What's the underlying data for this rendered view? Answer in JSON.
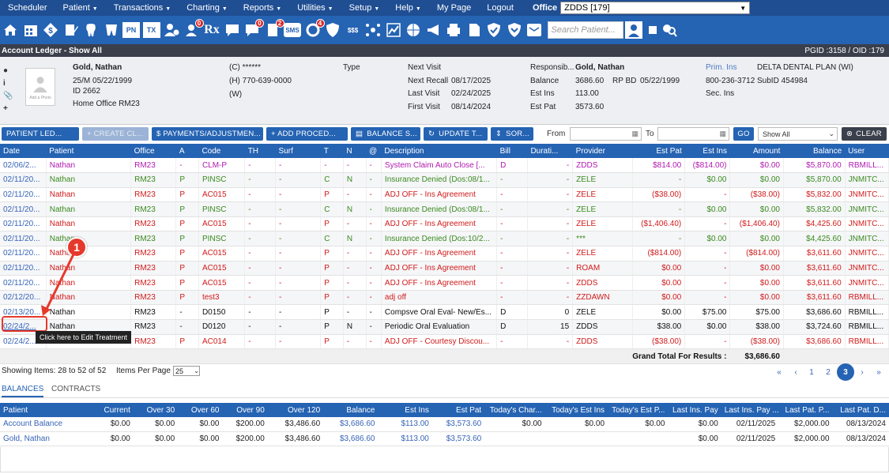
{
  "menu": {
    "items": [
      {
        "label": "Scheduler",
        "caret": false
      },
      {
        "label": "Patient",
        "caret": true
      },
      {
        "label": "Transactions",
        "caret": true
      },
      {
        "label": "Charting",
        "caret": true
      },
      {
        "label": "Reports",
        "caret": true
      },
      {
        "label": "Utilities",
        "caret": true
      },
      {
        "label": "Setup",
        "caret": true
      },
      {
        "label": "Help",
        "caret": true
      },
      {
        "label": "My Page",
        "caret": false
      },
      {
        "label": "Logout",
        "caret": false
      }
    ],
    "office_label": "Office",
    "office_value": "ZDDS [179]"
  },
  "toolbar_icons": {
    "search_placeholder": "Search Patient...",
    "badges": {
      "b1": "0",
      "b2": "2",
      "b3": "0",
      "b4": "0",
      "b5": "4"
    },
    "labels": {
      "pn": "PN",
      "tx": "TX",
      "rx": "Rx",
      "sms": "SMS",
      "ss": "$$$"
    }
  },
  "title": {
    "left": "Account Ledger - Show All",
    "right": "PGID :3158  /  OID :179"
  },
  "patient": {
    "name": "Gold, Nathan",
    "age_sex_dob": "25/M  05/22/1999",
    "id": "ID 2662",
    "home_office": "Home Office  RM23",
    "cell": "(C) ******",
    "home_phone": "(H) 770-639-0000",
    "work": "(W)",
    "type_label": "Type",
    "photo_text": "Add a Photo",
    "next_visit_label": "Next Visit",
    "next_recall_label": "Next Recall",
    "next_recall": "08/17/2025",
    "last_visit_label": "Last Visit",
    "last_visit": "02/24/2025",
    "first_visit_label": "First Visit",
    "first_visit": "08/14/2024",
    "resp_label": "Responsib...",
    "resp": "Gold, Nathan",
    "balance_label": "Balance",
    "balance": "3686.60",
    "rpbd_label": "RP BD",
    "rpbd": "05/22/1999",
    "estins_label": "Est Ins",
    "estins": "113.00",
    "estpat_label": "Est Pat",
    "estpat": "3573.60",
    "prim_label": "Prim. Ins",
    "prim": "DELTA DENTAL PLAN (WI)",
    "prim_phone": "800-236-3712",
    "subid": "SubID 454984",
    "sec_label": "Sec. Ins"
  },
  "actions": {
    "patient_ledger": "PATIENT LED...",
    "create_claim": "+ CREATE CL...",
    "payments": "$  PAYMENTS/ADJUSTMEN...",
    "add_procedure": "+  ADD PROCED...",
    "balance": "BALANCE S...",
    "update": "UPDATE T...",
    "sort": "SOR...",
    "from_label": "From",
    "to_label": "To",
    "go": "GO",
    "show_all": "Show All",
    "clear": "CLEAR"
  },
  "ledger": {
    "columns": [
      "Date",
      "Patient",
      "Office",
      "A",
      "Code",
      "TH",
      "Surf",
      "T",
      "N",
      "@",
      "Description",
      "Bill",
      "Durati...",
      "Provider",
      "Est Pat",
      "Est Ins",
      "Amount",
      "Balance",
      "User"
    ],
    "rows": [
      {
        "style": "purple",
        "cells": [
          "02/06/2...",
          "Nathan",
          "RM23",
          "-",
          "CLM-P",
          "-",
          "-",
          "-",
          "-",
          "-",
          "System Claim Auto Close [...",
          "D",
          "-",
          "ZDDS",
          "$814.00",
          "($814.00)",
          "$0.00",
          "$5,870.00",
          "RBMILL..."
        ]
      },
      {
        "style": "green",
        "cells": [
          "02/11/20...",
          "Nathan",
          "RM23",
          "P",
          "PINSC",
          "-",
          "-",
          "C",
          "N",
          "-",
          "Insurance Denied (Dos:08/1...",
          "-",
          "-",
          "ZELE",
          "-",
          "$0.00",
          "$0.00",
          "$5,870.00",
          "JNMITC..."
        ]
      },
      {
        "style": "red",
        "cells": [
          "02/11/20...",
          "Nathan",
          "RM23",
          "P",
          "AC015",
          "-",
          "-",
          "P",
          "-",
          "-",
          "ADJ OFF - Ins Agreement",
          "-",
          "-",
          "ZELE",
          "($38.00)",
          "-",
          "($38.00)",
          "$5,832.00",
          "JNMITC..."
        ]
      },
      {
        "style": "green",
        "cells": [
          "02/11/20...",
          "Nathan",
          "RM23",
          "P",
          "PINSC",
          "-",
          "-",
          "C",
          "N",
          "-",
          "Insurance Denied (Dos:08/1...",
          "-",
          "-",
          "ZELE",
          "-",
          "$0.00",
          "$0.00",
          "$5,832.00",
          "JNMITC..."
        ]
      },
      {
        "style": "red",
        "cells": [
          "02/11/20...",
          "Nathan",
          "RM23",
          "P",
          "AC015",
          "-",
          "-",
          "P",
          "-",
          "-",
          "ADJ OFF - Ins Agreement",
          "-",
          "-",
          "ZELE",
          "($1,406.40)",
          "-",
          "($1,406.40)",
          "$4,425.60",
          "JNMITC..."
        ]
      },
      {
        "style": "green",
        "cells": [
          "02/11/20...",
          "Nathan",
          "RM23",
          "P",
          "PINSC",
          "-",
          "-",
          "C",
          "N",
          "-",
          "Insurance Denied (Dos:10/2...",
          "-",
          "-",
          "***",
          "-",
          "$0.00",
          "$0.00",
          "$4,425.60",
          "JNMITC..."
        ]
      },
      {
        "style": "red",
        "cells": [
          "02/11/20...",
          "Nathan",
          "RM23",
          "P",
          "AC015",
          "-",
          "-",
          "P",
          "-",
          "-",
          "ADJ OFF - Ins Agreement",
          "-",
          "-",
          "ZELE",
          "($814.00)",
          "-",
          "($814.00)",
          "$3,611.60",
          "JNMITC..."
        ]
      },
      {
        "style": "red",
        "cells": [
          "02/11/20...",
          "Nathan",
          "RM23",
          "P",
          "AC015",
          "-",
          "-",
          "P",
          "-",
          "-",
          "ADJ OFF - Ins Agreement",
          "-",
          "-",
          "ROAM",
          "$0.00",
          "-",
          "$0.00",
          "$3,611.60",
          "JNMITC..."
        ]
      },
      {
        "style": "red",
        "cells": [
          "02/11/20...",
          "Nathan",
          "RM23",
          "P",
          "AC015",
          "-",
          "-",
          "P",
          "-",
          "-",
          "ADJ OFF - Ins Agreement",
          "-",
          "-",
          "ZDDS",
          "$0.00",
          "-",
          "$0.00",
          "$3,611.60",
          "JNMITC..."
        ]
      },
      {
        "style": "red",
        "cells": [
          "02/12/20...",
          "Nathan",
          "RM23",
          "P",
          "test3",
          "-",
          "-",
          "P",
          "-",
          "-",
          "adj off",
          "-",
          "-",
          "ZZDAWN",
          "$0.00",
          "-",
          "$0.00",
          "$3,611.60",
          "RBMILL..."
        ]
      },
      {
        "style": "black",
        "cells": [
          "02/13/20...",
          "Nathan",
          "RM23",
          "-",
          "D0150",
          "-",
          "-",
          "P",
          "-",
          "-",
          "Compsve Oral Eval- New/Es...",
          "D",
          "0",
          "ZELE",
          "$0.00",
          "$75.00",
          "$75.00",
          "$3,686.60",
          "RBMILL..."
        ]
      },
      {
        "style": "black",
        "cells": [
          "02/24/2...",
          "Nathan",
          "RM23",
          "-",
          "D0120",
          "-",
          "-",
          "P",
          "N",
          "-",
          "Periodic Oral Evaluation",
          "D",
          "15",
          "ZDDS",
          "$38.00",
          "$0.00",
          "$38.00",
          "$3,724.60",
          "RBMILL..."
        ]
      },
      {
        "style": "red",
        "cells": [
          "02/24/2...",
          "Nathan",
          "RM23",
          "P",
          "AC014",
          "-",
          "-",
          "P",
          "-",
          "-",
          "ADJ OFF - Courtesy Discou...",
          "-",
          "-",
          "ZDDS",
          "($38.00)",
          "-",
          "($38.00)",
          "$3,686.60",
          "RBMILL..."
        ]
      }
    ],
    "grand_label": "Grand Total For Results :",
    "grand_value": "$3,686.60"
  },
  "tooltip": "Click here to Edit Treatment",
  "callout": "1",
  "pager": {
    "showing": "Showing Items: 28 to 52 of 52",
    "per_page_label": "Items Per Page",
    "per_page": "25",
    "first": "«",
    "prev": "‹",
    "p1": "1",
    "p2": "2",
    "p3": "3",
    "next": "›",
    "last": "»"
  },
  "tabs": {
    "balances": "BALANCES",
    "contracts": "CONTRACTS"
  },
  "balances": {
    "columns": [
      "Patient",
      "Current",
      "Over 30",
      "Over 60",
      "Over 90",
      "Over 120",
      "Balance",
      "Est Ins",
      "Est Pat",
      "Today's Char...",
      "Today's Est Ins",
      "Today's Est P...",
      "Last Ins. Pay",
      "Last Ins. Pay ...",
      "Last Pat. P...",
      "Last Pat. D..."
    ],
    "rows": [
      [
        "Account Balance",
        "$0.00",
        "$0.00",
        "$0.00",
        "$200.00",
        "$3,486.60",
        "$3,686.60",
        "$113.00",
        "$3,573.60",
        "$0.00",
        "$0.00",
        "$0.00",
        "$0.00",
        "02/11/2025",
        "$2,000.00",
        "08/13/2024"
      ],
      [
        "Gold, Nathan",
        "$0.00",
        "$0.00",
        "$0.00",
        "$200.00",
        "$3,486.60",
        "$3,686.60",
        "$113.00",
        "$3,573.60",
        "",
        "",
        "",
        "$0.00",
        "02/11/2025",
        "$2,000.00",
        "08/13/2024"
      ]
    ]
  }
}
